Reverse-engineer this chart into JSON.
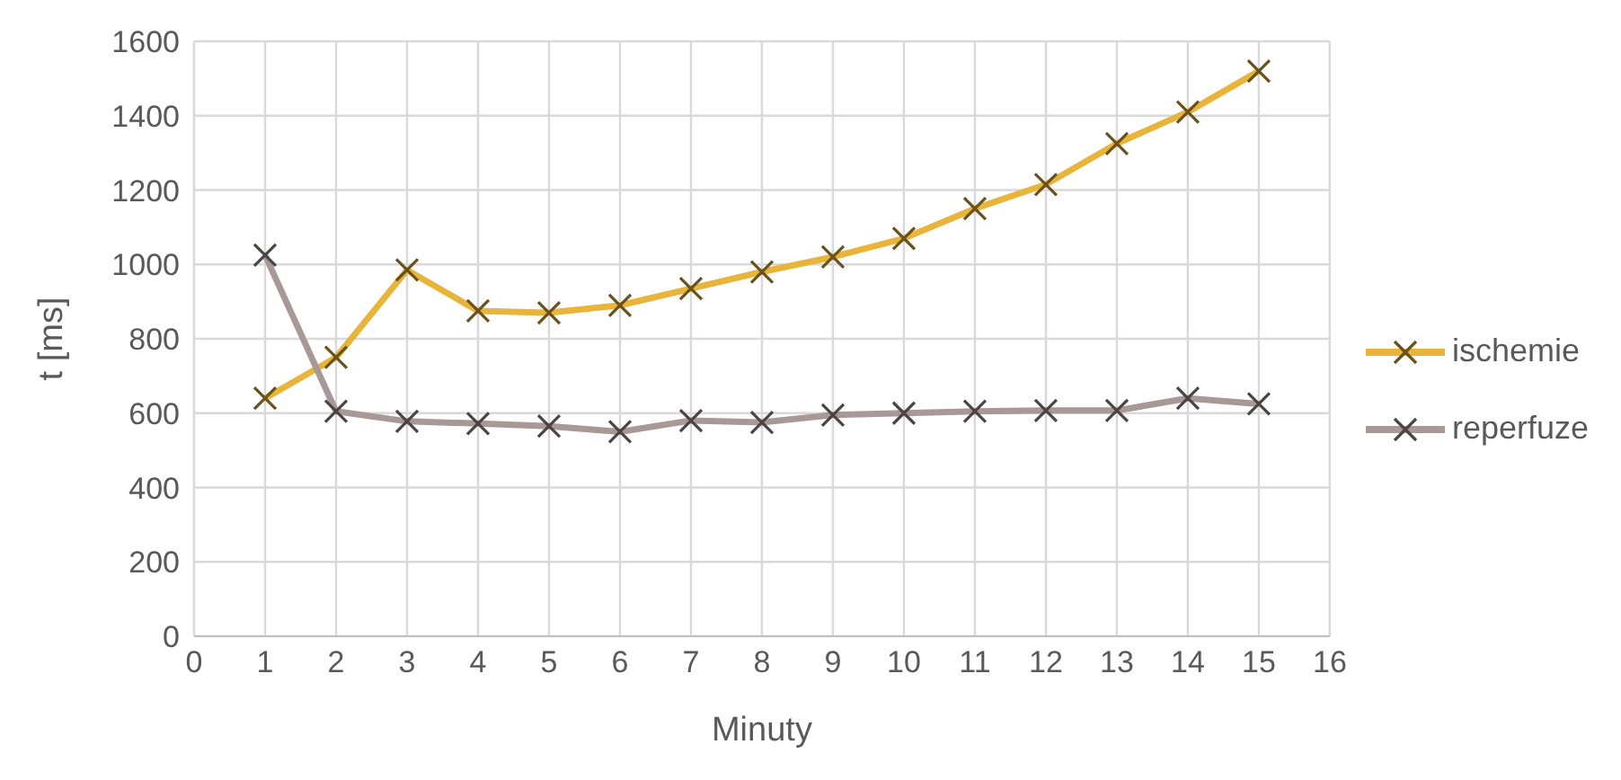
{
  "chart_data": {
    "type": "line",
    "xlabel": "Minuty",
    "ylabel": "t [ms]",
    "x": [
      1,
      2,
      3,
      4,
      5,
      6,
      7,
      8,
      9,
      10,
      11,
      12,
      13,
      14,
      15
    ],
    "series": [
      {
        "name": "ischemie",
        "color": "#e8b53a",
        "values": [
          640,
          750,
          985,
          875,
          870,
          890,
          935,
          980,
          1020,
          1070,
          1150,
          1215,
          1325,
          1410,
          1520
        ]
      },
      {
        "name": "reperfuze",
        "color": "#a89898",
        "values": [
          1025,
          605,
          578,
          572,
          565,
          550,
          580,
          575,
          595,
          600,
          605,
          607,
          607,
          640,
          625
        ]
      }
    ],
    "xlim": [
      0,
      16
    ],
    "xticks": [
      0,
      1,
      2,
      3,
      4,
      5,
      6,
      7,
      8,
      9,
      10,
      11,
      12,
      13,
      14,
      15,
      16
    ],
    "ylim": [
      0,
      1600
    ],
    "yticks": [
      0,
      200,
      400,
      600,
      800,
      1000,
      1200,
      1400,
      1600
    ],
    "grid": true,
    "legend": "right",
    "marker": "cross",
    "line_style": "solid"
  }
}
